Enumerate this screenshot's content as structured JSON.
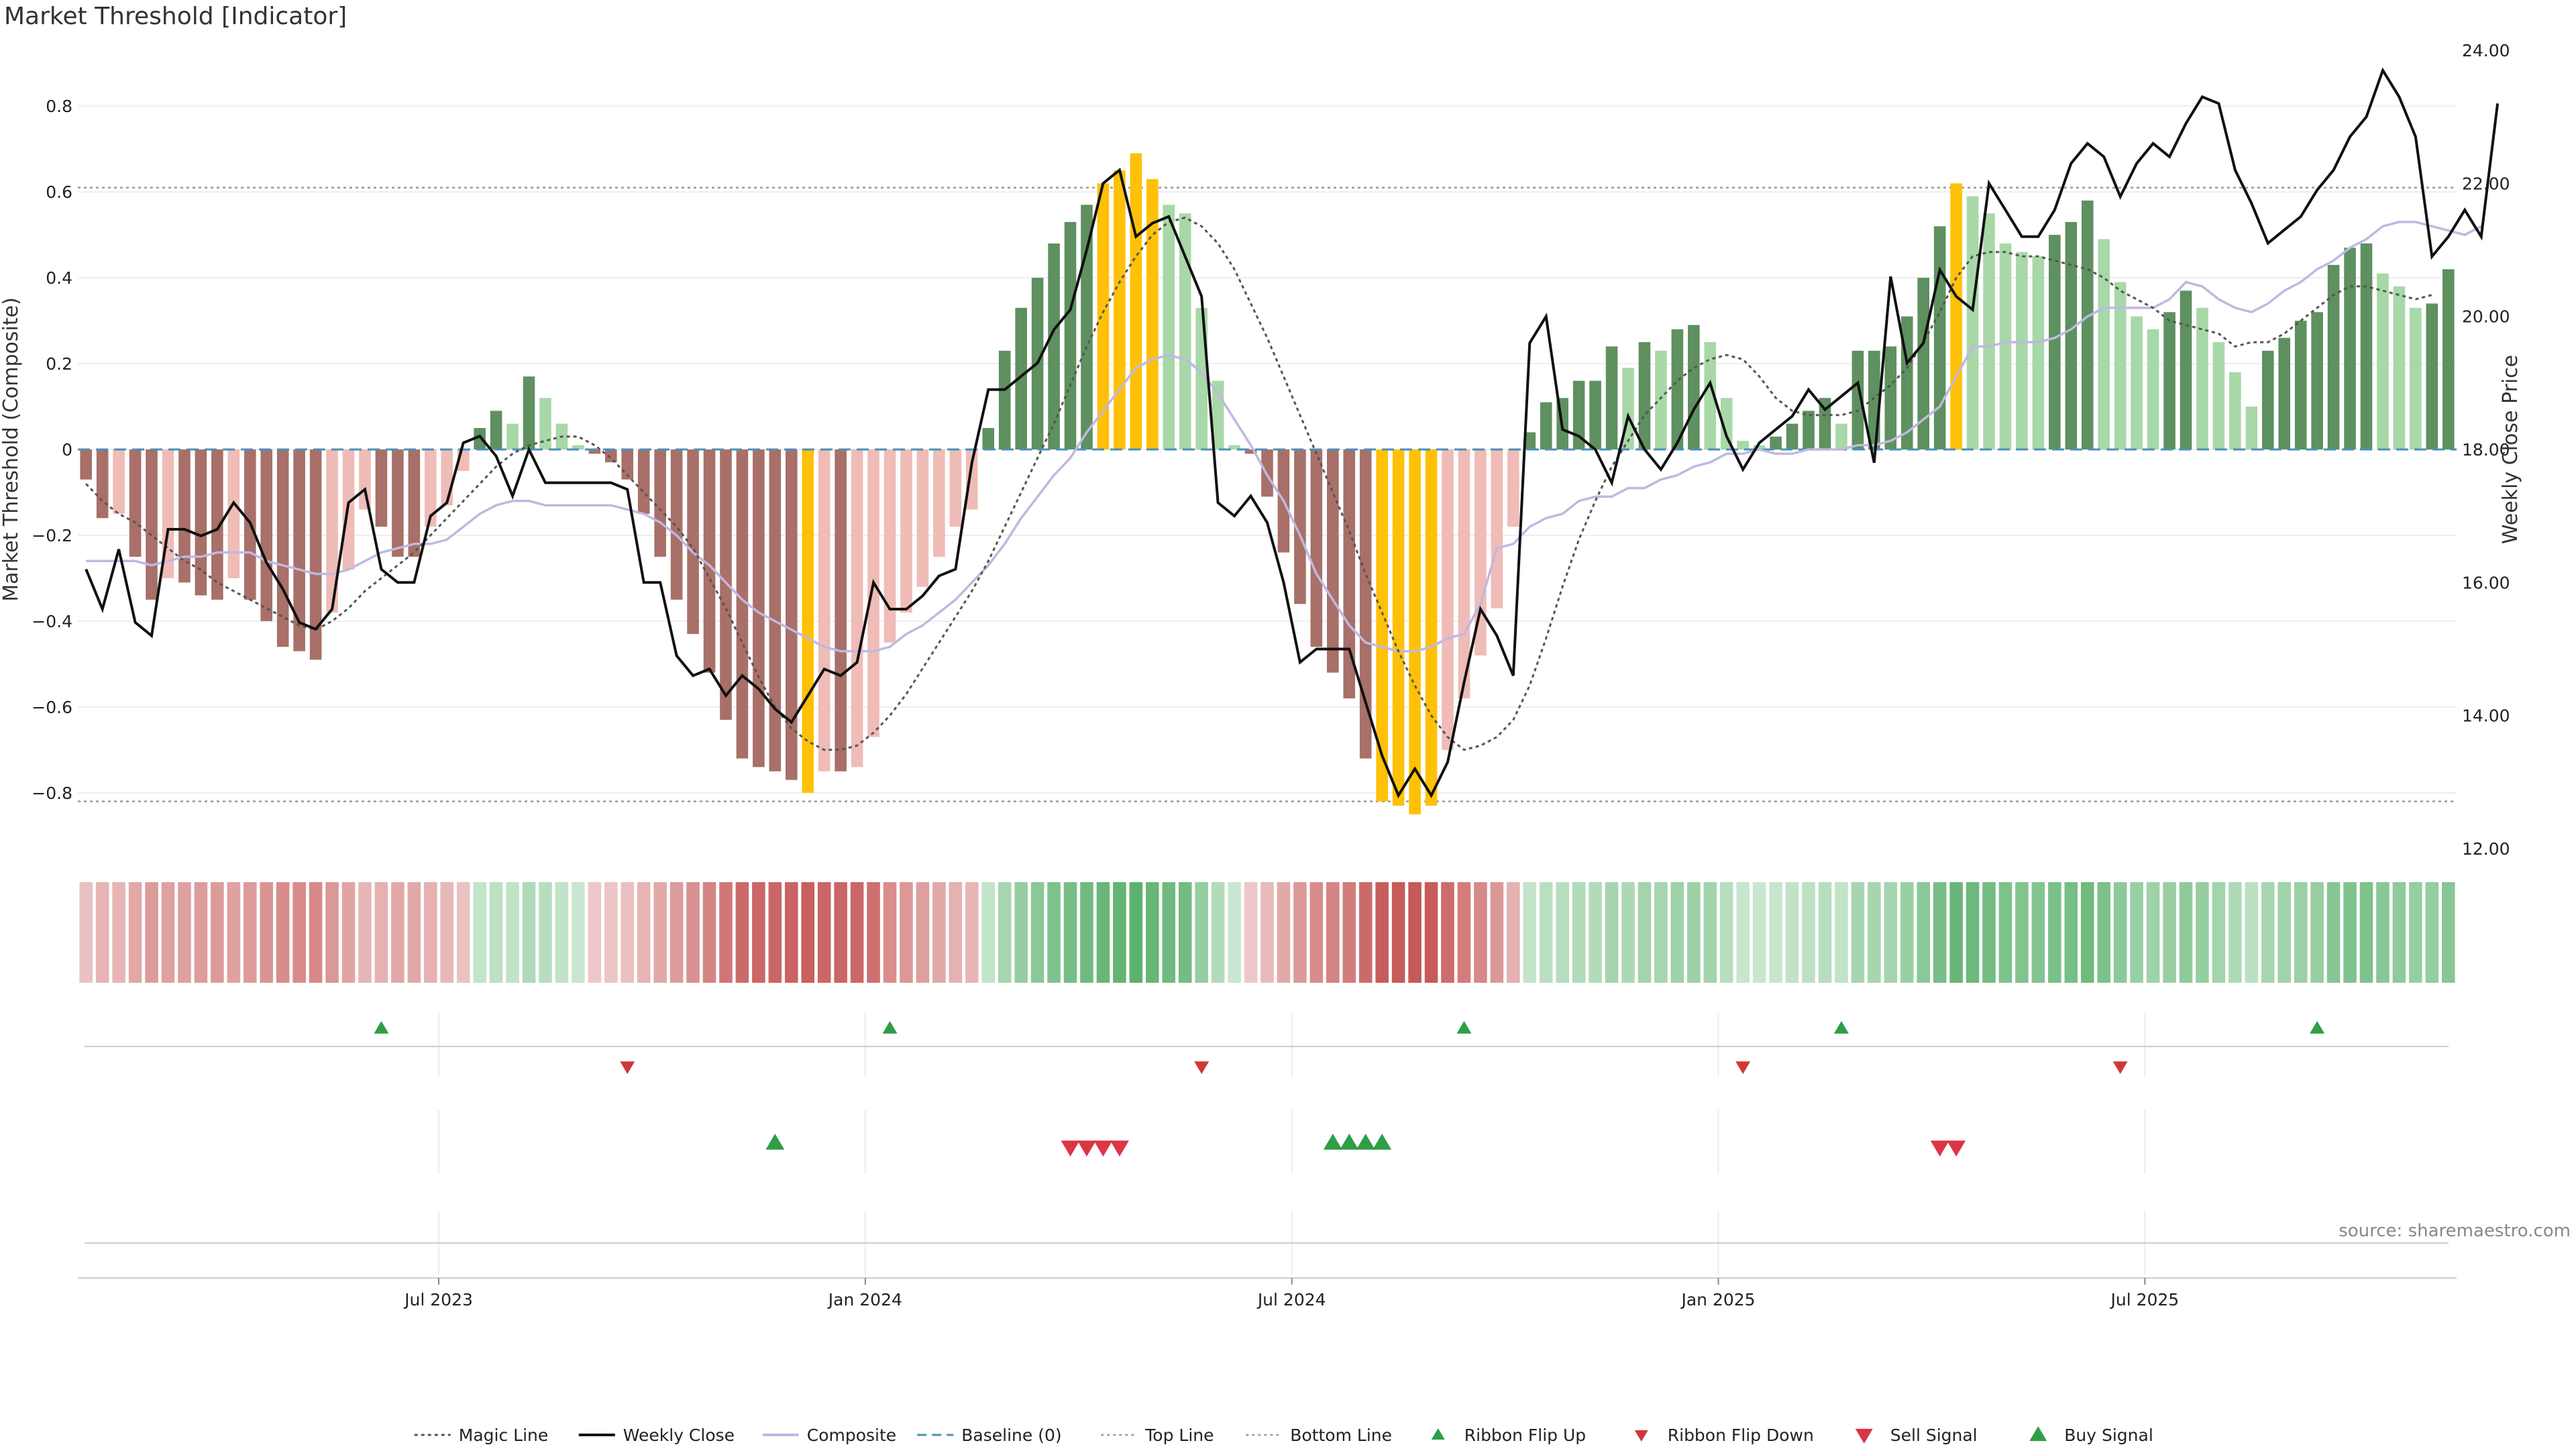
{
  "title": "Market Threshold [Indicator]",
  "source": "source: sharemaestro.com",
  "chart_data": {
    "type": "bar",
    "ylabel": "Market Threshold (Composite)",
    "y2label": "Weekly Close Price",
    "ylim": [
      -0.93,
      0.93
    ],
    "y2lim": [
      12,
      24
    ],
    "yticks": [
      "0.8",
      "0.6",
      "0.4",
      "0.2",
      "0",
      "−0.2",
      "−0.4",
      "−0.6",
      "−0.8"
    ],
    "yticks_values": [
      0.8,
      0.6,
      0.4,
      0.2,
      0,
      -0.2,
      -0.4,
      -0.6,
      -0.8
    ],
    "y2ticks": [
      "24.00",
      "22.00",
      "20.00",
      "18.00",
      "16.00",
      "14.00",
      "12.00"
    ],
    "y2ticks_values": [
      24,
      22,
      20,
      18,
      16,
      14,
      12
    ],
    "xticks": [
      {
        "label": "Jul 2023",
        "week": 22
      },
      {
        "label": "Jan 2024",
        "week": 48
      },
      {
        "label": "Jul 2024",
        "week": 74
      },
      {
        "label": "Jan 2025",
        "week": 100
      },
      {
        "label": "Jul 2025",
        "week": 126
      }
    ],
    "top_line": 0.61,
    "bottom_line": -0.82,
    "baseline": 0,
    "series": [
      {
        "name": "Composite Bars",
        "values": [
          -0.07,
          -0.16,
          -0.15,
          -0.25,
          -0.35,
          -0.3,
          -0.31,
          -0.34,
          -0.35,
          -0.3,
          -0.35,
          -0.4,
          -0.46,
          -0.47,
          -0.49,
          -0.38,
          -0.28,
          -0.14,
          -0.18,
          -0.25,
          -0.25,
          -0.18,
          -0.13,
          -0.05,
          0.05,
          0.09,
          0.06,
          0.17,
          0.12,
          0.06,
          0.01,
          -0.01,
          -0.03,
          -0.07,
          -0.15,
          -0.25,
          -0.35,
          -0.43,
          -0.52,
          -0.63,
          -0.72,
          -0.74,
          -0.75,
          -0.77,
          -0.8,
          -0.75,
          -0.75,
          -0.74,
          -0.67,
          -0.45,
          -0.38,
          -0.32,
          -0.25,
          -0.18,
          -0.14,
          0.05,
          0.23,
          0.33,
          0.4,
          0.48,
          0.53,
          0.57,
          0.62,
          0.65,
          0.69,
          0.63,
          0.57,
          0.55,
          0.33,
          0.16,
          0.01,
          -0.01,
          -0.11,
          -0.24,
          -0.36,
          -0.46,
          -0.52,
          -0.58,
          -0.72,
          -0.82,
          -0.83,
          -0.85,
          -0.83,
          -0.7,
          -0.58,
          -0.48,
          -0.37,
          -0.18,
          0.04,
          0.11,
          0.12,
          0.16,
          0.16,
          0.24,
          0.19,
          0.25,
          0.23,
          0.28,
          0.29,
          0.25,
          0.12,
          0.02,
          0.01,
          0.03,
          0.06,
          0.09,
          0.12,
          0.06,
          0.23,
          0.23,
          0.24,
          0.31,
          0.4,
          0.52,
          0.62,
          0.59,
          0.55,
          0.48,
          0.46,
          0.45,
          0.5,
          0.53,
          0.58,
          0.49,
          0.39,
          0.31,
          0.28,
          0.32,
          0.37,
          0.33,
          0.25,
          0.18,
          0.1,
          0.23,
          0.26,
          0.3,
          0.32,
          0.43,
          0.47,
          0.48,
          0.41,
          0.38,
          0.33,
          0.34,
          0.42
        ]
      },
      {
        "name": "Magic Line",
        "values": [
          -0.08,
          -0.12,
          -0.15,
          -0.17,
          -0.2,
          -0.23,
          -0.26,
          -0.28,
          -0.31,
          -0.33,
          -0.35,
          -0.37,
          -0.39,
          -0.41,
          -0.42,
          -0.4,
          -0.37,
          -0.33,
          -0.3,
          -0.27,
          -0.24,
          -0.2,
          -0.16,
          -0.12,
          -0.08,
          -0.04,
          -0.01,
          0.01,
          0.02,
          0.03,
          0.03,
          0.01,
          -0.02,
          -0.06,
          -0.1,
          -0.14,
          -0.18,
          -0.23,
          -0.3,
          -0.37,
          -0.45,
          -0.53,
          -0.6,
          -0.65,
          -0.68,
          -0.7,
          -0.7,
          -0.69,
          -0.66,
          -0.62,
          -0.57,
          -0.51,
          -0.45,
          -0.39,
          -0.33,
          -0.26,
          -0.18,
          -0.1,
          -0.02,
          0.06,
          0.15,
          0.24,
          0.32,
          0.39,
          0.45,
          0.5,
          0.53,
          0.54,
          0.52,
          0.48,
          0.42,
          0.34,
          0.26,
          0.17,
          0.08,
          -0.01,
          -0.1,
          -0.19,
          -0.29,
          -0.38,
          -0.47,
          -0.55,
          -0.62,
          -0.67,
          -0.7,
          -0.69,
          -0.67,
          -0.63,
          -0.55,
          -0.44,
          -0.32,
          -0.21,
          -0.12,
          -0.04,
          0.02,
          0.08,
          0.12,
          0.16,
          0.19,
          0.21,
          0.22,
          0.21,
          0.17,
          0.12,
          0.09,
          0.08,
          0.08,
          0.08,
          0.09,
          0.12,
          0.15,
          0.19,
          0.25,
          0.32,
          0.4,
          0.45,
          0.46,
          0.46,
          0.45,
          0.45,
          0.44,
          0.43,
          0.42,
          0.4,
          0.37,
          0.35,
          0.33,
          0.3,
          0.29,
          0.28,
          0.27,
          0.24,
          0.25,
          0.25,
          0.27,
          0.3,
          0.33,
          0.36,
          0.38,
          0.38,
          0.37,
          0.36,
          0.35,
          0.36
        ]
      },
      {
        "name": "Composite",
        "values": [
          -0.26,
          -0.26,
          -0.26,
          -0.26,
          -0.27,
          -0.26,
          -0.25,
          -0.25,
          -0.24,
          -0.24,
          -0.24,
          -0.26,
          -0.27,
          -0.28,
          -0.29,
          -0.29,
          -0.28,
          -0.26,
          -0.24,
          -0.23,
          -0.22,
          -0.22,
          -0.21,
          -0.18,
          -0.15,
          -0.13,
          -0.12,
          -0.12,
          -0.13,
          -0.13,
          -0.13,
          -0.13,
          -0.13,
          -0.14,
          -0.15,
          -0.17,
          -0.2,
          -0.24,
          -0.27,
          -0.31,
          -0.35,
          -0.38,
          -0.4,
          -0.42,
          -0.44,
          -0.46,
          -0.47,
          -0.47,
          -0.47,
          -0.46,
          -0.43,
          -0.41,
          -0.38,
          -0.35,
          -0.31,
          -0.27,
          -0.22,
          -0.16,
          -0.11,
          -0.06,
          -0.02,
          0.04,
          0.09,
          0.14,
          0.19,
          0.21,
          0.22,
          0.21,
          0.18,
          0.13,
          0.07,
          0.01,
          -0.06,
          -0.12,
          -0.2,
          -0.29,
          -0.35,
          -0.41,
          -0.45,
          -0.46,
          -0.47,
          -0.47,
          -0.46,
          -0.44,
          -0.43,
          -0.36,
          -0.23,
          -0.22,
          -0.18,
          -0.16,
          -0.15,
          -0.12,
          -0.11,
          -0.11,
          -0.09,
          -0.09,
          -0.07,
          -0.06,
          -0.04,
          -0.03,
          -0.01,
          -0.01,
          0,
          -0.01,
          -0.01,
          0,
          0,
          0,
          0.01,
          0.01,
          0.02,
          0.04,
          0.07,
          0.1,
          0.17,
          0.24,
          0.24,
          0.25,
          0.25,
          0.25,
          0.26,
          0.28,
          0.31,
          0.33,
          0.33,
          0.33,
          0.33,
          0.35,
          0.39,
          0.38,
          0.35,
          0.33,
          0.32,
          0.34,
          0.37,
          0.39,
          0.42,
          0.44,
          0.47,
          0.49,
          0.52,
          0.53,
          0.53,
          0.52,
          0.51,
          0.5,
          0.52
        ]
      },
      {
        "name": "Weekly Close",
        "values": [
          16.2,
          15.6,
          16.5,
          15.4,
          15.2,
          16.8,
          16.8,
          16.7,
          16.8,
          17.2,
          16.9,
          16.3,
          15.9,
          15.4,
          15.3,
          15.6,
          17.2,
          17.4,
          16.2,
          16.0,
          16.0,
          17.0,
          17.2,
          18.1,
          18.2,
          17.9,
          17.3,
          18.0,
          17.5,
          17.5,
          17.5,
          17.5,
          17.5,
          17.4,
          16.0,
          16.0,
          14.9,
          14.6,
          14.7,
          14.3,
          14.6,
          14.4,
          14.1,
          13.9,
          14.3,
          14.7,
          14.6,
          14.8,
          16.0,
          15.6,
          15.6,
          15.8,
          16.1,
          16.2,
          17.8,
          18.9,
          18.9,
          19.1,
          19.3,
          19.8,
          20.1,
          21.0,
          22.0,
          22.2,
          21.2,
          21.4,
          21.5,
          20.9,
          20.3,
          17.2,
          17.0,
          17.3,
          16.9,
          16.0,
          14.8,
          15.0,
          15.0,
          15.0,
          14.2,
          13.4,
          12.8,
          13.2,
          12.8,
          13.3,
          14.5,
          15.6,
          15.2,
          14.6,
          19.6,
          20.0,
          18.3,
          18.2,
          18.0,
          17.5,
          18.5,
          18.0,
          17.7,
          18.1,
          18.6,
          19.0,
          18.2,
          17.7,
          18.1,
          18.3,
          18.5,
          18.9,
          18.6,
          18.8,
          19.0,
          17.8,
          20.6,
          19.3,
          19.6,
          20.7,
          20.3,
          20.1,
          22.0,
          21.6,
          21.2,
          21.2,
          21.6,
          22.3,
          22.6,
          22.4,
          21.8,
          22.3,
          22.6,
          22.4,
          22.9,
          23.3,
          23.2,
          22.2,
          21.7,
          21.1,
          21.3,
          21.5,
          21.9,
          22.2,
          22.7,
          23.0,
          23.7,
          23.3,
          22.7,
          20.9,
          21.2,
          21.6,
          21.2,
          23.2
        ]
      },
      {
        "name": "Ribbon",
        "values": [
          -0.07,
          -0.16,
          -0.15,
          -0.25,
          -0.35,
          -0.3,
          -0.31,
          -0.34,
          -0.35,
          -0.3,
          -0.35,
          -0.4,
          -0.46,
          -0.47,
          -0.49,
          -0.38,
          -0.28,
          -0.14,
          -0.18,
          -0.25,
          -0.25,
          -0.18,
          -0.13,
          -0.05,
          0.05,
          0.09,
          0.06,
          0.17,
          0.12,
          0.06,
          0.01,
          -0.01,
          -0.03,
          -0.07,
          -0.15,
          -0.25,
          -0.35,
          -0.43,
          -0.52,
          -0.63,
          -0.72,
          -0.74,
          -0.75,
          -0.77,
          -0.8,
          -0.75,
          -0.75,
          -0.74,
          -0.67,
          -0.45,
          -0.38,
          -0.32,
          -0.25,
          -0.18,
          -0.14,
          0.05,
          0.23,
          0.33,
          0.4,
          0.48,
          0.53,
          0.57,
          0.62,
          0.65,
          0.69,
          0.63,
          0.57,
          0.55,
          0.33,
          0.16,
          0.01,
          -0.01,
          -0.11,
          -0.24,
          -0.36,
          -0.46,
          -0.52,
          -0.58,
          -0.72,
          -0.82,
          -0.83,
          -0.85,
          -0.83,
          -0.7,
          -0.58,
          -0.48,
          -0.37,
          -0.18,
          0.04,
          0.11,
          0.12,
          0.16,
          0.16,
          0.24,
          0.19,
          0.25,
          0.23,
          0.28,
          0.29,
          0.25,
          0.12,
          0.02,
          0.01,
          0.03,
          0.06,
          0.09,
          0.12,
          0.06,
          0.23,
          0.23,
          0.24,
          0.31,
          0.4,
          0.52,
          0.62,
          0.59,
          0.55,
          0.48,
          0.46,
          0.45,
          0.5,
          0.53,
          0.58,
          0.49,
          0.39,
          0.31,
          0.28,
          0.32,
          0.37,
          0.33,
          0.25,
          0.18,
          0.1,
          0.23,
          0.26,
          0.3,
          0.32,
          0.43,
          0.47,
          0.48,
          0.41,
          0.38,
          0.33,
          0.34,
          0.42
        ]
      }
    ],
    "ribbon_flip_up": [
      18,
      49,
      84,
      107,
      136
    ],
    "ribbon_flip_down": [
      33,
      68,
      101,
      124
    ],
    "buy_signal": [
      42,
      76,
      77,
      78,
      79
    ],
    "sell_signal": [
      60,
      61,
      62,
      63,
      113,
      114
    ],
    "legend": {
      "placement": "bottom-center",
      "items": [
        {
          "label": "Magic Line",
          "symbol": "dotted"
        },
        {
          "label": "Weekly Close",
          "symbol": "solid"
        },
        {
          "label": "Composite",
          "symbol": "lavender"
        },
        {
          "label": "Baseline (0)",
          "symbol": "dashed"
        },
        {
          "label": "Top Line",
          "symbol": "dotted-light"
        },
        {
          "label": "Bottom Line",
          "symbol": "dotted-light"
        },
        {
          "label": "Ribbon Flip Up",
          "symbol": "tri-up-small"
        },
        {
          "label": "Ribbon Flip Down",
          "symbol": "tri-down-small"
        },
        {
          "label": "Sell Signal",
          "symbol": "tri-down"
        },
        {
          "label": "Buy Signal",
          "symbol": "tri-up"
        }
      ]
    },
    "colors": {
      "strong_neg": "#a87068",
      "weak_neg": "#efbcb7",
      "strong_pos": "#5f9060",
      "weak_pos": "#a8d8a8",
      "extreme": "#ffc107",
      "magic_line": "#555555",
      "weekly_close": "#111111",
      "composite": "#c0b8e0",
      "baseline": "#4a90b8",
      "threshold_line": "#999999",
      "flip_up": "#2e9e48",
      "flip_down": "#d03838",
      "buy": "#2e9e48",
      "sell": "#dc3545"
    }
  }
}
